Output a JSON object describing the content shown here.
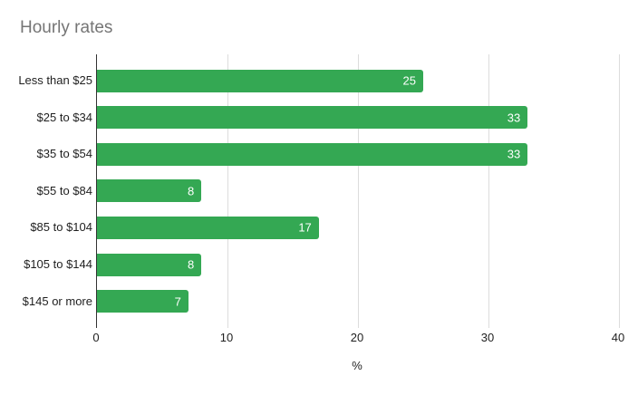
{
  "chart_data": {
    "type": "bar",
    "orientation": "horizontal",
    "title": "Hourly rates",
    "xlabel": "%",
    "ylabel": "",
    "categories": [
      "Less than $25",
      "$25 to $34",
      "$35 to $54",
      "$55 to $84",
      "$85 to $104",
      "$105 to $144",
      "$145 or more"
    ],
    "values": [
      25,
      33,
      33,
      8,
      17,
      8,
      7
    ],
    "xlim": [
      0,
      40
    ],
    "xticks": [
      0,
      10,
      20,
      30,
      40
    ],
    "grid": true,
    "legend": "none",
    "colors": {
      "bar": "#34a853",
      "value_label": "#ffffff",
      "title": "#757575",
      "axis_text": "#1f1f1f",
      "gridline": "#dcdcdc",
      "axis_line": "#333333",
      "background": "#ffffff"
    }
  }
}
